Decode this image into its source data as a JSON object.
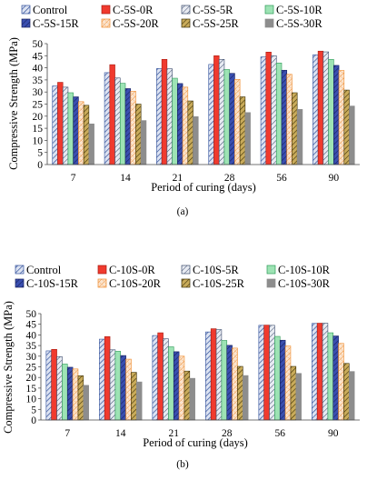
{
  "chart_data": [
    {
      "type": "bar",
      "panel_label": "(a)",
      "xlabel": "Period of curing (days)",
      "ylabel": "Compressive Strength (MPa)",
      "ylim": [
        0,
        50
      ],
      "yticks": [
        0,
        5,
        10,
        15,
        20,
        25,
        30,
        35,
        40,
        45,
        50
      ],
      "grid": false,
      "legend_position": "top",
      "categories": [
        "7",
        "14",
        "21",
        "28",
        "56",
        "90"
      ],
      "series": [
        {
          "name": "Control",
          "style": "control",
          "values": [
            32.5,
            38.0,
            39.7,
            41.4,
            44.5,
            45.4
          ]
        },
        {
          "name": "C-5S-0R",
          "style": "red",
          "values": [
            34.0,
            41.3,
            43.5,
            45.0,
            46.5,
            46.9
          ]
        },
        {
          "name": "C-5S-5R",
          "style": "dashcheck",
          "values": [
            32.0,
            35.8,
            39.6,
            43.5,
            45.0,
            46.6
          ]
        },
        {
          "name": "C-5S-10R",
          "style": "green",
          "values": [
            29.7,
            33.6,
            35.7,
            39.3,
            42.0,
            43.5
          ]
        },
        {
          "name": "C-5S-15R",
          "style": "navy",
          "values": [
            28.0,
            31.4,
            33.5,
            37.7,
            39.0,
            41.0
          ]
        },
        {
          "name": "C-5S-20R",
          "style": "orange",
          "values": [
            26.0,
            30.3,
            32.0,
            35.2,
            37.3,
            38.9
          ]
        },
        {
          "name": "C-5S-25R",
          "style": "olive",
          "values": [
            24.5,
            25.0,
            26.3,
            28.0,
            29.7,
            30.8
          ]
        },
        {
          "name": "C-5S-30R",
          "style": "gray",
          "values": [
            16.8,
            18.2,
            19.8,
            21.5,
            22.8,
            24.2
          ]
        }
      ]
    },
    {
      "type": "bar",
      "panel_label": "(b)",
      "xlabel": "Period of curing (days)",
      "ylabel": "Compressive Strength (MPa)",
      "ylim": [
        0,
        50
      ],
      "yticks": [
        0,
        5,
        10,
        15,
        20,
        25,
        30,
        35,
        40,
        45,
        50
      ],
      "grid": false,
      "legend_position": "top",
      "categories": [
        "7",
        "14",
        "21",
        "28",
        "56",
        "90"
      ],
      "series": [
        {
          "name": "Control",
          "style": "control",
          "values": [
            32.5,
            38.0,
            39.7,
            41.4,
            44.5,
            45.4
          ]
        },
        {
          "name": "C-10S-0R",
          "style": "red",
          "values": [
            33.2,
            39.2,
            41.0,
            42.9,
            44.6,
            45.5
          ]
        },
        {
          "name": "C-10S-5R",
          "style": "dashcheck",
          "values": [
            29.8,
            33.0,
            38.2,
            42.5,
            44.5,
            45.5
          ]
        },
        {
          "name": "C-10S-10R",
          "style": "green",
          "values": [
            26.3,
            32.3,
            34.4,
            37.4,
            39.3,
            41.0
          ]
        },
        {
          "name": "C-10S-15R",
          "style": "navy",
          "values": [
            24.8,
            30.3,
            32.1,
            35.1,
            37.5,
            39.5
          ]
        },
        {
          "name": "C-10S-20R",
          "style": "orange",
          "values": [
            24.0,
            28.6,
            30.0,
            33.8,
            34.8,
            36.0
          ]
        },
        {
          "name": "C-10S-25R",
          "style": "olive",
          "values": [
            20.8,
            22.4,
            23.0,
            25.2,
            25.2,
            26.6
          ]
        },
        {
          "name": "C-10S-30R",
          "style": "gray",
          "values": [
            16.3,
            17.9,
            19.6,
            20.9,
            21.9,
            22.8
          ]
        }
      ]
    }
  ],
  "styles": {
    "control": {
      "fill": "#dde3f2",
      "stroke": "#2f4f9a",
      "pattern": "wide-diag"
    },
    "red": {
      "fill": "#f03a2e",
      "stroke": "#a81b10",
      "pattern": "solid"
    },
    "dashcheck": {
      "fill": "#e8ebf2",
      "stroke": "#3a4a6b",
      "pattern": "diag"
    },
    "green": {
      "fill": "#9de3b4",
      "stroke": "#2e9a58",
      "pattern": "solid-light"
    },
    "navy": {
      "fill": "#3a4fb0",
      "stroke": "#16205e",
      "pattern": "dark-diag"
    },
    "orange": {
      "fill": "#fbe5d0",
      "stroke": "#ef8a2a",
      "pattern": "cross"
    },
    "olive": {
      "fill": "#c9ab5a",
      "stroke": "#3d3006",
      "pattern": "dark-diag-olive"
    },
    "gray": {
      "fill": "#8d8d8d",
      "stroke": "#8d8d8d",
      "pattern": "solid"
    }
  }
}
